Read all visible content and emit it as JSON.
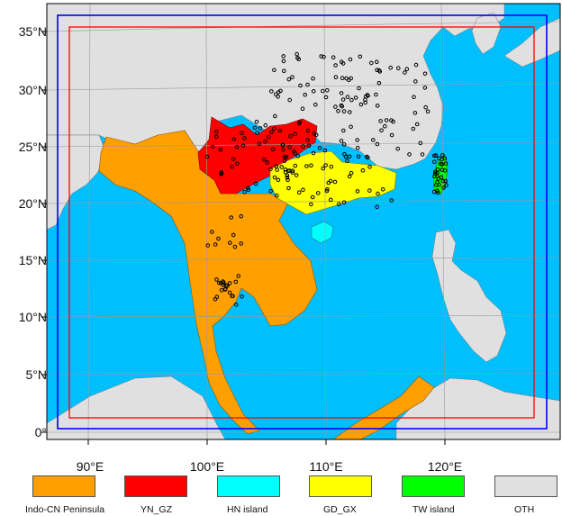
{
  "map": {
    "lat_labels": [
      "35°N",
      "30°N",
      "25°N",
      "20°N",
      "15°N",
      "10°N",
      "5°N",
      "0°"
    ],
    "lon_labels": [
      "90°E",
      "100°E",
      "110°E",
      "120°E"
    ]
  },
  "legend": {
    "items": [
      {
        "label": "Indo-CN Peninsula",
        "color": "#ff9f00"
      },
      {
        "label": "YN_GZ",
        "color": "#ff0000"
      },
      {
        "label": "HN island",
        "color": "#00ffff"
      },
      {
        "label": "GD_GX",
        "color": "#ffff00"
      },
      {
        "label": "TW island",
        "color": "#00ff00"
      },
      {
        "label": "OTH",
        "color": "#e0e0e0"
      }
    ]
  },
  "colors": {
    "ocean": "#00bfff",
    "other_land": "#e0e0e0",
    "outer_domain_border": "#0000ff",
    "inner_domain_border": "#ff0000",
    "station_marker": "#000000"
  }
}
